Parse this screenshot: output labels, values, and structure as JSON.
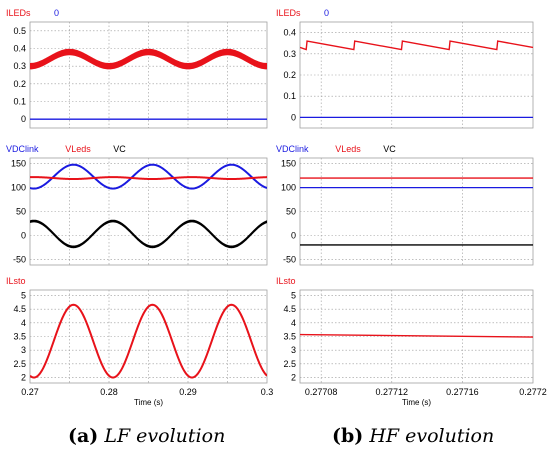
{
  "figure": {
    "captions": [
      {
        "tag": "(a)",
        "text": "LF evolution"
      },
      {
        "tag": "(b)",
        "text": "HF evolution"
      }
    ]
  },
  "colors": {
    "red": "#e8121a",
    "blue": "#1a1ae0",
    "black": "#000000",
    "grid": "#9a9a9a"
  },
  "chart_data": [
    {
      "type": "line",
      "column": "a",
      "row": 0,
      "legend": [
        {
          "label": "ILEDs",
          "color": "red"
        },
        {
          "label": "0",
          "color": "blue"
        }
      ],
      "ylim": [
        -0.05,
        0.55
      ],
      "yticks": [
        0,
        0.1,
        0.2,
        0.3,
        0.4,
        0.5
      ],
      "ytick_labels": [
        "0",
        "0.1",
        "0.2",
        "0.3",
        "0.4",
        "0.5"
      ],
      "xlim": [
        0.27,
        0.3
      ],
      "series": [
        {
          "name": "ILEDs",
          "color": "red",
          "kind": "band",
          "x_start": 0.27,
          "x_end": 0.3,
          "mean": 0.34,
          "amplitude": 0.04,
          "period": 0.01,
          "phase_peak": 0.275,
          "band_halfwidth": 0.016
        },
        {
          "name": "0",
          "color": "blue",
          "kind": "const",
          "value": 0
        }
      ]
    },
    {
      "type": "line",
      "column": "a",
      "row": 1,
      "legend": [
        {
          "label": "VDClink",
          "color": "blue"
        },
        {
          "label": "VLeds",
          "color": "red"
        },
        {
          "label": "VC",
          "color": "black"
        }
      ],
      "ylim": [
        -62,
        162
      ],
      "yticks": [
        -50,
        0,
        50,
        100,
        150
      ],
      "ytick_labels": [
        "-50",
        "0",
        "50",
        "100",
        "150"
      ],
      "xlim": [
        0.27,
        0.3
      ],
      "series": [
        {
          "name": "VDClink",
          "color": "blue",
          "kind": "sine",
          "mean": 123,
          "amplitude": 25,
          "period": 0.01,
          "phase_peak": 0.2855
        },
        {
          "name": "VLeds",
          "color": "red",
          "kind": "sine",
          "mean": 120,
          "amplitude": 2,
          "period": 0.01,
          "phase_peak": 0.2805
        },
        {
          "name": "VC",
          "color": "black",
          "kind": "sine",
          "mean": 3,
          "amplitude": 27,
          "period": 0.01,
          "phase_peak": 0.2805,
          "band_halfwidth": 2
        }
      ]
    },
    {
      "type": "line",
      "column": "a",
      "row": 2,
      "legend": [
        {
          "label": "ILsto",
          "color": "red"
        }
      ],
      "ylim": [
        1.8,
        5.2
      ],
      "yticks": [
        2,
        2.5,
        3,
        3.5,
        4,
        4.5,
        5
      ],
      "ytick_labels": [
        "2",
        "2.5",
        "3",
        "3.5",
        "4",
        "4.5",
        "5"
      ],
      "xlim": [
        0.27,
        0.3
      ],
      "xticks": [
        0.27,
        0.28,
        0.29,
        0.3
      ],
      "xtick_labels": [
        "0.27",
        "0.28",
        "0.29",
        "0.3"
      ],
      "xlabel": "Time (s)",
      "series": [
        {
          "name": "ILsto",
          "color": "red",
          "kind": "sine",
          "mean": 3.33,
          "amplitude": 1.33,
          "period": 0.01,
          "phase_peak": 0.2755
        }
      ]
    },
    {
      "type": "line",
      "column": "b",
      "row": 0,
      "legend": [
        {
          "label": "ILEDs",
          "color": "red"
        },
        {
          "label": "0",
          "color": "blue"
        }
      ],
      "ylim": [
        -0.05,
        0.45
      ],
      "yticks": [
        0,
        0.1,
        0.2,
        0.3,
        0.4
      ],
      "ytick_labels": [
        "0",
        "0.1",
        "0.2",
        "0.3",
        "0.4"
      ],
      "xlim": [
        0.277068,
        0.2772
      ],
      "series": [
        {
          "name": "ILEDs",
          "color": "red",
          "kind": "sawtooth",
          "x": [
            0.277068,
            0.2770715,
            0.277072,
            0.2770985,
            0.277099,
            0.2771255,
            0.277126,
            0.2771525,
            0.277153,
            0.2771795,
            0.27718,
            0.2772
          ],
          "y": [
            0.33,
            0.32,
            0.36,
            0.32,
            0.36,
            0.32,
            0.36,
            0.32,
            0.36,
            0.32,
            0.36,
            0.33
          ]
        },
        {
          "name": "0",
          "color": "blue",
          "kind": "const",
          "value": 0
        }
      ]
    },
    {
      "type": "line",
      "column": "b",
      "row": 1,
      "legend": [
        {
          "label": "VDClink",
          "color": "blue"
        },
        {
          "label": "VLeds",
          "color": "red"
        },
        {
          "label": "VC",
          "color": "black"
        }
      ],
      "ylim": [
        -62,
        162
      ],
      "yticks": [
        -50,
        0,
        50,
        100,
        150
      ],
      "ytick_labels": [
        "-50",
        "0",
        "50",
        "100",
        "150"
      ],
      "xlim": [
        0.277068,
        0.2772
      ],
      "series": [
        {
          "name": "VDClink",
          "color": "blue",
          "kind": "const",
          "value": 100
        },
        {
          "name": "VLeds",
          "color": "red",
          "kind": "const",
          "value": 120
        },
        {
          "name": "VC",
          "color": "black",
          "kind": "const",
          "value": -20
        }
      ]
    },
    {
      "type": "line",
      "column": "b",
      "row": 2,
      "legend": [
        {
          "label": "ILsto",
          "color": "red"
        }
      ],
      "ylim": [
        1.8,
        5.2
      ],
      "yticks": [
        2,
        2.5,
        3,
        3.5,
        4,
        4.5,
        5
      ],
      "ytick_labels": [
        "2",
        "2.5",
        "3",
        "3.5",
        "4",
        "4.5",
        "5"
      ],
      "xlim": [
        0.277068,
        0.2772
      ],
      "xticks": [
        0.27708,
        0.27712,
        0.27716,
        0.2772
      ],
      "xtick_labels": [
        "0.27708",
        "0.27712",
        "0.27716",
        "0.2772"
      ],
      "xlabel": "Time (s)",
      "series": [
        {
          "name": "ILsto",
          "color": "red",
          "kind": "line",
          "x": [
            0.277068,
            0.2772
          ],
          "y": [
            3.57,
            3.48
          ]
        }
      ]
    }
  ]
}
